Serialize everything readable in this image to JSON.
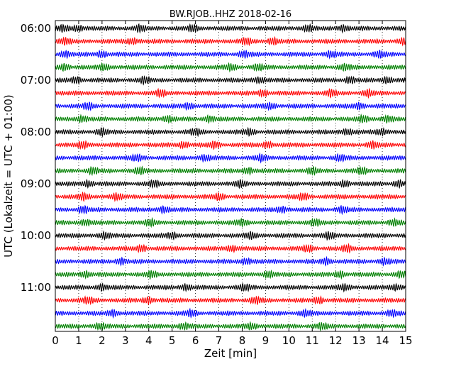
{
  "chart_data": {
    "type": "line",
    "title": "BW.RJOB..HHZ 2018-02-16",
    "xlabel": "Zeit  [min]",
    "ylabel": "UTC (Lokalzeit = UTC + 01:00)",
    "xlim": [
      0,
      15
    ],
    "x_ticks": [
      "0",
      "1",
      "2",
      "3",
      "4",
      "5",
      "6",
      "7",
      "8",
      "9",
      "10",
      "11",
      "12",
      "13",
      "14",
      "15"
    ],
    "y_ticks": [
      "06:00",
      "07:00",
      "08:00",
      "09:00",
      "10:00",
      "11:00"
    ],
    "ylim_hours": [
      "06:00",
      "12:00"
    ],
    "trace_interval_min": 15,
    "trace_count": 24,
    "trace_colors": [
      "#000000",
      "#ff0000",
      "#0000ff",
      "#008000"
    ],
    "grid": "vertical dotted at each minute",
    "series": [
      {
        "start": "06:00",
        "color": "#000000",
        "bursts_min": [
          0.35,
          1.0,
          3.6,
          5.9,
          10.8,
          12.3
        ]
      },
      {
        "start": "06:15",
        "color": "#ff0000",
        "bursts_min": [
          0.4,
          3.3,
          8.2,
          9.3,
          14.9
        ]
      },
      {
        "start": "06:30",
        "color": "#0000ff",
        "bursts_min": [
          0.4,
          2.0,
          8.1,
          11.8,
          13.9
        ]
      },
      {
        "start": "06:45",
        "color": "#008000",
        "bursts_min": [
          0.4,
          2.1,
          7.5,
          8.7,
          12.4
        ]
      },
      {
        "start": "07:00",
        "color": "#000000",
        "bursts_min": [
          0.9,
          3.8,
          8.7,
          12.6,
          14.2
        ]
      },
      {
        "start": "07:15",
        "color": "#ff0000",
        "bursts_min": [
          4.5,
          8.9,
          11.8,
          13.4
        ]
      },
      {
        "start": "07:30",
        "color": "#0000ff",
        "bursts_min": [
          1.4,
          5.7,
          9.2,
          13.0
        ]
      },
      {
        "start": "07:45",
        "color": "#008000",
        "bursts_min": [
          1.1,
          4.8,
          6.6,
          13.2,
          14.2
        ]
      },
      {
        "start": "08:00",
        "color": "#000000",
        "bursts_min": [
          2.0,
          6.0,
          8.3,
          12.5,
          14.0
        ]
      },
      {
        "start": "08:15",
        "color": "#ff0000",
        "bursts_min": [
          1.2,
          5.5,
          6.8,
          9.1,
          13.6
        ]
      },
      {
        "start": "08:30",
        "color": "#0000ff",
        "bursts_min": [
          3.5,
          6.4,
          8.8,
          12.2
        ]
      },
      {
        "start": "08:45",
        "color": "#008000",
        "bursts_min": [
          1.6,
          3.6,
          8.3,
          11.0,
          13.1
        ]
      },
      {
        "start": "09:00",
        "color": "#000000",
        "bursts_min": [
          1.4,
          4.2,
          7.9,
          12.4,
          14.7
        ]
      },
      {
        "start": "09:15",
        "color": "#ff0000",
        "bursts_min": [
          1.2,
          2.6,
          7.0,
          10.6
        ]
      },
      {
        "start": "09:30",
        "color": "#0000ff",
        "bursts_min": [
          1.2,
          4.6,
          9.7,
          12.3
        ]
      },
      {
        "start": "09:45",
        "color": "#008000",
        "bursts_min": [
          1.3,
          4.1,
          8.0,
          11.1,
          14.5
        ]
      },
      {
        "start": "10:00",
        "color": "#000000",
        "bursts_min": [
          2.1,
          5.0,
          8.4,
          11.7
        ]
      },
      {
        "start": "10:15",
        "color": "#ff0000",
        "bursts_min": [
          3.7,
          7.6,
          10.8,
          12.5
        ]
      },
      {
        "start": "10:30",
        "color": "#0000ff",
        "bursts_min": [
          2.8,
          8.2,
          11.6,
          14.1
        ]
      },
      {
        "start": "10:45",
        "color": "#008000",
        "bursts_min": [
          1.3,
          4.1,
          9.1,
          12.2,
          14.8
        ]
      },
      {
        "start": "11:00",
        "color": "#000000",
        "bursts_min": [
          2.0,
          5.6,
          8.1,
          12.4,
          14.6
        ]
      },
      {
        "start": "11:15",
        "color": "#ff0000",
        "bursts_min": [
          1.4,
          4.0,
          8.6,
          11.3
        ]
      },
      {
        "start": "11:30",
        "color": "#0000ff",
        "bursts_min": [
          2.5,
          5.8,
          10.7,
          14.4
        ]
      },
      {
        "start": "11:45",
        "color": "#008000",
        "bursts_min": [
          1.9,
          5.5,
          8.4,
          11.4
        ]
      }
    ]
  }
}
